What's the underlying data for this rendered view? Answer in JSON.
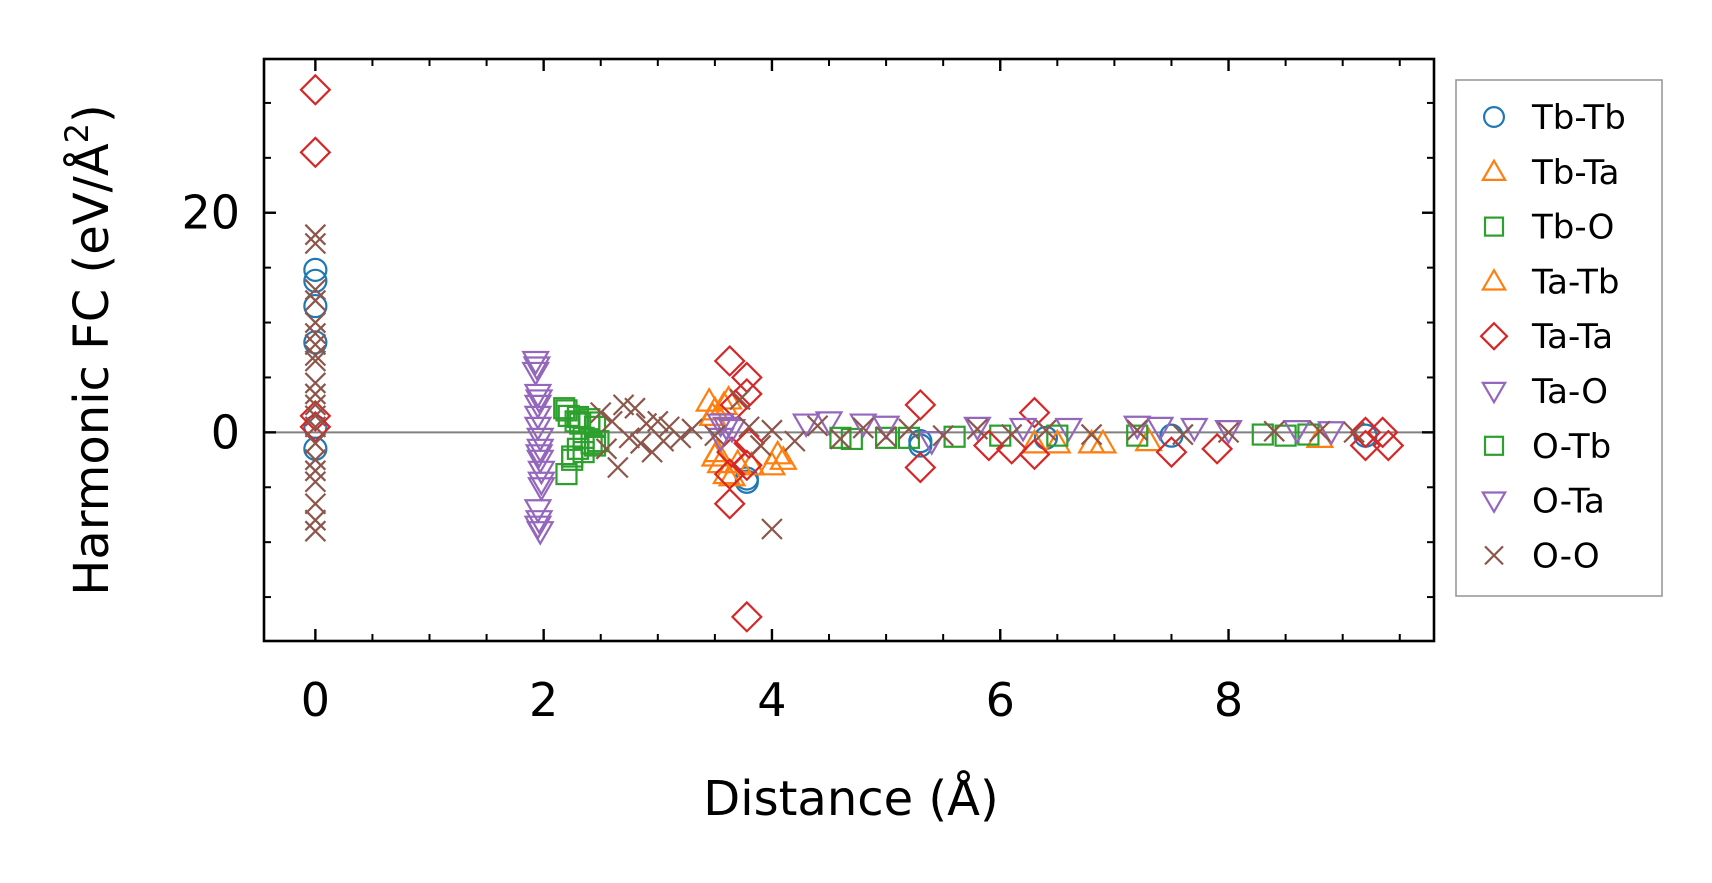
{
  "chart_data": {
    "type": "scatter",
    "title": "",
    "xlabel": "Distance (Å)",
    "ylabel_main": "Harmonic FC (eV/Å",
    "ylabel_sup": "2",
    "ylabel_close": ")",
    "xlim": [
      -0.45,
      9.8
    ],
    "ylim": [
      -19,
      34
    ],
    "xticks": [
      0,
      2,
      4,
      6,
      8
    ],
    "xtick_labels": [
      "0",
      "2",
      "4",
      "6",
      "8"
    ],
    "xminor_step": 0.5,
    "yticks": [
      0,
      20
    ],
    "ytick_labels": [
      "0",
      "20"
    ],
    "yminor_step": 5,
    "zero_line": true,
    "legend_position": "right-outside",
    "series": [
      {
        "name": "Tb-Tb",
        "marker": "circle",
        "color": "#1f77b4",
        "points": [
          [
            0,
            14.8
          ],
          [
            0,
            13.8
          ],
          [
            0,
            11.5
          ],
          [
            0,
            8.2
          ],
          [
            0,
            -1.5
          ],
          [
            0,
            0.5
          ],
          [
            3.78,
            -4.5
          ],
          [
            3.78,
            -4.2
          ],
          [
            5.3,
            -1.2
          ],
          [
            5.3,
            -0.8
          ],
          [
            6.4,
            -0.5
          ],
          [
            7.5,
            -0.3
          ],
          [
            9.2,
            -0.3
          ]
        ]
      },
      {
        "name": "Tb-Ta",
        "marker": "triangle-up",
        "color": "#ff7f0e",
        "points": [
          [
            3.45,
            2.8
          ],
          [
            3.5,
            2.0
          ],
          [
            3.5,
            -2.2
          ],
          [
            3.55,
            -2.8
          ],
          [
            3.6,
            -3.8
          ],
          [
            3.62,
            3.0
          ],
          [
            3.65,
            -4.0
          ],
          [
            3.82,
            -3.0
          ],
          [
            4.0,
            -3.0
          ],
          [
            4.1,
            -2.5
          ],
          [
            6.5,
            -1.0
          ],
          [
            6.8,
            -1.0
          ],
          [
            7.3,
            -0.8
          ],
          [
            8.8,
            -0.5
          ]
        ]
      },
      {
        "name": "Tb-O",
        "marker": "square",
        "color": "#2ca02c",
        "points": [
          [
            2.18,
            2.2
          ],
          [
            2.2,
            -3.8
          ],
          [
            2.22,
            1.5
          ],
          [
            2.25,
            -2.5
          ],
          [
            2.28,
            1.0
          ],
          [
            2.3,
            -1.5
          ],
          [
            2.32,
            0.8
          ],
          [
            2.35,
            -0.5
          ],
          [
            2.4,
            1.2
          ],
          [
            2.42,
            -1.0
          ],
          [
            2.45,
            0.5
          ],
          [
            2.48,
            -0.8
          ],
          [
            4.7,
            -0.6
          ],
          [
            5.0,
            -0.5
          ],
          [
            5.6,
            -0.4
          ],
          [
            6.0,
            -0.3
          ],
          [
            7.2,
            -0.3
          ],
          [
            8.5,
            -0.3
          ],
          [
            8.7,
            -0.2
          ]
        ]
      },
      {
        "name": "Ta-Tb",
        "marker": "triangle-up",
        "color": "#ff7f0e",
        "points": [
          [
            3.48,
            1.5
          ],
          [
            3.52,
            -1.8
          ],
          [
            3.58,
            2.5
          ],
          [
            3.7,
            -2.8
          ],
          [
            4.05,
            -2.0
          ],
          [
            6.3,
            -1.0
          ],
          [
            6.9,
            -1.0
          ]
        ]
      },
      {
        "name": "Ta-Ta",
        "marker": "diamond",
        "color": "#d62728",
        "points": [
          [
            0,
            31.2
          ],
          [
            0,
            25.5
          ],
          [
            0,
            1.5
          ],
          [
            0,
            0.5
          ],
          [
            3.63,
            6.5
          ],
          [
            3.63,
            -6.5
          ],
          [
            3.63,
            -3.8
          ],
          [
            3.65,
            -1.8
          ],
          [
            3.68,
            2.5
          ],
          [
            3.78,
            5.0
          ],
          [
            3.78,
            3.5
          ],
          [
            3.78,
            -16.8
          ],
          [
            3.78,
            -3.0
          ],
          [
            3.8,
            -1.0
          ],
          [
            5.3,
            2.5
          ],
          [
            5.3,
            -3.2
          ],
          [
            5.9,
            -1.2
          ],
          [
            6.3,
            1.8
          ],
          [
            6.3,
            -2.0
          ],
          [
            6.1,
            -1.5
          ],
          [
            7.5,
            -1.8
          ],
          [
            7.9,
            -1.5
          ],
          [
            9.2,
            -1.2
          ],
          [
            9.2,
            0
          ],
          [
            9.35,
            0
          ],
          [
            9.4,
            -1.2
          ]
        ]
      },
      {
        "name": "Ta-O",
        "marker": "triangle-down",
        "color": "#9467bd",
        "points": [
          [
            1.93,
            6.5
          ],
          [
            1.93,
            5.5
          ],
          [
            1.95,
            3.5
          ],
          [
            1.95,
            2.5
          ],
          [
            1.95,
            1.5
          ],
          [
            1.95,
            0.5
          ],
          [
            1.97,
            -0.5
          ],
          [
            1.97,
            -1.5
          ],
          [
            1.97,
            -2.5
          ],
          [
            1.98,
            -3.5
          ],
          [
            1.98,
            -5.0
          ],
          [
            1.95,
            -7.0
          ],
          [
            1.95,
            -8.5
          ],
          [
            1.97,
            -9.0
          ],
          [
            3.55,
            0.8
          ],
          [
            3.55,
            -0.5
          ],
          [
            3.65,
            0.3
          ],
          [
            4.5,
            1.0
          ],
          [
            4.8,
            0.8
          ],
          [
            5.4,
            -0.8
          ],
          [
            5.8,
            0.5
          ],
          [
            6.6,
            0.4
          ],
          [
            7.2,
            0.6
          ],
          [
            7.7,
            0.4
          ],
          [
            8.0,
            0.2
          ],
          [
            8.9,
            0.1
          ]
        ]
      },
      {
        "name": "O-Tb",
        "marker": "square",
        "color": "#2ca02c",
        "points": [
          [
            2.2,
            2.0
          ],
          [
            2.25,
            -2.2
          ],
          [
            2.3,
            1.4
          ],
          [
            2.35,
            -1.8
          ],
          [
            2.4,
            0.9
          ],
          [
            2.45,
            -1.2
          ],
          [
            4.6,
            -0.5
          ],
          [
            5.2,
            -0.5
          ],
          [
            6.5,
            -0.3
          ],
          [
            8.3,
            -0.2
          ]
        ]
      },
      {
        "name": "O-Ta",
        "marker": "triangle-down",
        "color": "#9467bd",
        "points": [
          [
            1.94,
            6.0
          ],
          [
            1.96,
            3.0
          ],
          [
            1.96,
            -2.0
          ],
          [
            1.98,
            -4.5
          ],
          [
            1.96,
            -8.0
          ],
          [
            3.6,
            0.5
          ],
          [
            4.3,
            0.8
          ],
          [
            5.0,
            0.6
          ],
          [
            6.2,
            0.4
          ],
          [
            7.4,
            0.5
          ],
          [
            8.6,
            0.2
          ]
        ]
      },
      {
        "name": "O-O",
        "marker": "x",
        "color": "#8c564b",
        "points": [
          [
            0,
            18.0
          ],
          [
            0,
            17.2
          ],
          [
            0,
            13.0
          ],
          [
            0,
            12.0
          ],
          [
            0,
            10.0
          ],
          [
            0,
            9.0
          ],
          [
            0,
            8.0
          ],
          [
            0,
            7.0
          ],
          [
            0,
            6.5
          ],
          [
            0,
            4.5
          ],
          [
            0,
            3.5
          ],
          [
            0,
            2.5
          ],
          [
            0,
            1.5
          ],
          [
            0,
            0.5
          ],
          [
            0,
            -1.0
          ],
          [
            0,
            -2.5
          ],
          [
            0,
            -3.5
          ],
          [
            0,
            -4.5
          ],
          [
            0,
            -6.5
          ],
          [
            0,
            -8.0
          ],
          [
            0,
            -9.0
          ],
          [
            2.5,
            1.8
          ],
          [
            2.55,
            -1.5
          ],
          [
            2.6,
            1.0
          ],
          [
            2.65,
            -3.2
          ],
          [
            2.7,
            2.5
          ],
          [
            2.75,
            -0.5
          ],
          [
            2.8,
            2.2
          ],
          [
            2.85,
            -1.0
          ],
          [
            2.9,
            0.8
          ],
          [
            2.95,
            -1.8
          ],
          [
            3.0,
            1.0
          ],
          [
            3.05,
            -0.8
          ],
          [
            3.1,
            0.5
          ],
          [
            3.2,
            -0.5
          ],
          [
            3.3,
            0.3
          ],
          [
            3.5,
            -0.3
          ],
          [
            3.72,
            3.0
          ],
          [
            3.8,
            0.5
          ],
          [
            3.9,
            -1.2
          ],
          [
            4.0,
            -8.8
          ],
          [
            4.0,
            0.2
          ],
          [
            4.2,
            -0.8
          ],
          [
            4.4,
            0.6
          ],
          [
            4.6,
            -0.6
          ],
          [
            4.8,
            0.4
          ],
          [
            5.0,
            -0.4
          ],
          [
            5.2,
            0.3
          ],
          [
            5.5,
            -0.3
          ],
          [
            5.8,
            0.3
          ],
          [
            6.1,
            -0.2
          ],
          [
            6.4,
            0.2
          ],
          [
            6.8,
            -0.2
          ],
          [
            7.2,
            0.2
          ],
          [
            7.6,
            -0.2
          ],
          [
            8.0,
            0
          ],
          [
            8.4,
            0.1
          ],
          [
            8.8,
            0.1
          ],
          [
            9.1,
            0
          ]
        ]
      }
    ]
  }
}
